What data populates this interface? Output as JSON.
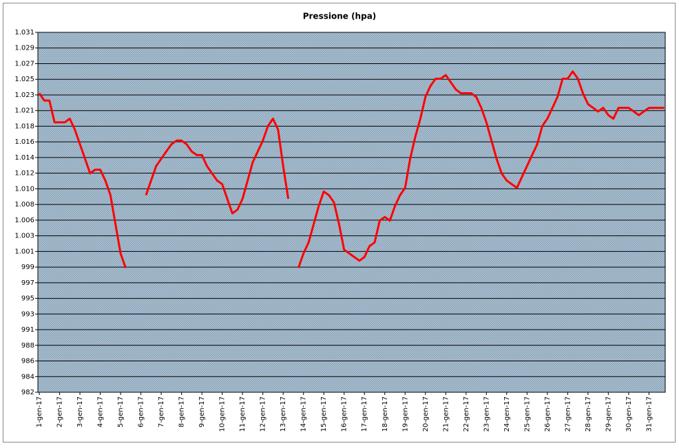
{
  "chart_data": {
    "type": "line",
    "title": "Pressione (hpa)",
    "x": [
      1,
      1.25,
      1.5,
      1.75,
      2,
      2.25,
      2.5,
      2.75,
      3,
      3.25,
      3.5,
      3.75,
      4,
      4.25,
      4.5,
      4.75,
      5,
      5.25,
      5.5,
      5.75,
      6,
      6.25,
      6.5,
      6.75,
      7,
      7.25,
      7.5,
      7.75,
      8,
      8.25,
      8.5,
      8.75,
      9,
      9.25,
      9.5,
      9.75,
      10,
      10.25,
      10.5,
      10.75,
      11,
      11.25,
      11.5,
      11.75,
      12,
      12.25,
      12.5,
      12.75,
      13,
      13.25,
      13.5,
      13.75,
      14,
      14.25,
      14.5,
      14.75,
      15,
      15.25,
      15.5,
      15.75,
      16,
      16.25,
      16.5,
      16.75,
      17,
      17.25,
      17.5,
      17.75,
      18,
      18.25,
      18.5,
      18.75,
      19,
      19.25,
      19.5,
      19.75,
      20,
      20.25,
      20.5,
      20.75,
      21,
      21.25,
      21.5,
      21.75,
      22,
      22.25,
      22.5,
      22.75,
      23,
      23.25,
      23.5,
      23.75,
      24,
      24.25,
      24.5,
      24.75,
      25,
      25.25,
      25.5,
      25.75,
      26,
      26.25,
      26.5,
      26.75,
      27,
      27.25,
      27.5,
      27.75,
      28,
      28.25,
      28.5,
      28.75,
      29,
      29.25,
      29.5,
      29.75,
      30,
      30.25,
      30.5,
      30.75,
      31,
      31.25,
      31.5,
      31.75
    ],
    "values": [
      1023,
      1022,
      1022,
      1019,
      1019,
      1019,
      1019.5,
      1018,
      1016,
      1014,
      1012,
      1012.5,
      1012.5,
      1011,
      1009,
      1005,
      1001,
      999,
      null,
      null,
      null,
      1009,
      1011,
      1013,
      1014,
      1015,
      1016,
      1016.5,
      1016.5,
      1016,
      1015,
      1014.5,
      1014.5,
      1013,
      1012,
      1011,
      1010.5,
      1008.5,
      1006.5,
      1007,
      1008.5,
      1011,
      1013.5,
      1015,
      1016.5,
      1018.5,
      1019.5,
      1018,
      1013,
      1008.5,
      null,
      999,
      1001,
      1002.5,
      1005,
      1007.5,
      1009.5,
      1009,
      1008,
      1005,
      1001.5,
      1001,
      1000.5,
      1000,
      1000.5,
      1002,
      1002.5,
      1005.5,
      1006,
      1005.5,
      1007.5,
      1009,
      1010,
      1014,
      1017,
      1019.5,
      1022.5,
      1024,
      1025,
      1025,
      1025.5,
      1024.5,
      1023.5,
      1023,
      1023,
      1023,
      1022.5,
      1021,
      1019,
      1016.5,
      1014,
      1012,
      1011,
      1010.5,
      1010,
      1011.5,
      1013,
      1014.5,
      1016,
      1018.5,
      1019.5,
      1021,
      1022.5,
      1025,
      1025,
      1026,
      1025,
      1023,
      1021.5,
      1021,
      1020.5,
      1021,
      1020,
      1019.5,
      1021,
      1021,
      1021,
      1020.5,
      1020,
      1020.5,
      1021,
      1021,
      1021,
      1021
    ],
    "color": "#ff0000",
    "xlim": [
      0.93,
      31.8
    ],
    "xticks": [
      {
        "value": 1,
        "label": "1-gen-17"
      },
      {
        "value": 2,
        "label": "2-gen-17"
      },
      {
        "value": 3,
        "label": "3-gen-17"
      },
      {
        "value": 4,
        "label": "4-gen-17"
      },
      {
        "value": 5,
        "label": "5-gen-17"
      },
      {
        "value": 6,
        "label": "6-gen-17"
      },
      {
        "value": 7,
        "label": "7-gen-17"
      },
      {
        "value": 8,
        "label": "8-gen-17"
      },
      {
        "value": 9,
        "label": "9-gen-17"
      },
      {
        "value": 10,
        "label": "10-gen-17"
      },
      {
        "value": 11,
        "label": "11-gen-17"
      },
      {
        "value": 12,
        "label": "12-gen-17"
      },
      {
        "value": 13,
        "label": "13-gen-17"
      },
      {
        "value": 14,
        "label": "14-gen-17"
      },
      {
        "value": 15,
        "label": "15-gen-17"
      },
      {
        "value": 16,
        "label": "16-gen-17"
      },
      {
        "value": 17,
        "label": "17-gen-17"
      },
      {
        "value": 18,
        "label": "18-gen-17"
      },
      {
        "value": 19,
        "label": "19-gen-17"
      },
      {
        "value": 20,
        "label": "20-gen-17"
      },
      {
        "value": 21,
        "label": "21-gen-17"
      },
      {
        "value": 22,
        "label": "22-gen-17"
      },
      {
        "value": 23,
        "label": "23-gen-17"
      },
      {
        "value": 24,
        "label": "24-gen-17"
      },
      {
        "value": 25,
        "label": "25-gen-17"
      },
      {
        "value": 26,
        "label": "26-gen-17"
      },
      {
        "value": 27,
        "label": "27-gen-17"
      },
      {
        "value": 28,
        "label": "28-gen-17"
      },
      {
        "value": 29,
        "label": "29-gen-17"
      },
      {
        "value": 30,
        "label": "30-gen-17"
      },
      {
        "value": 31,
        "label": "31-gen-17"
      }
    ],
    "ylim": [
      981.92,
      1031.37
    ],
    "yticks": [
      {
        "value": 981.92,
        "label": "982"
      },
      {
        "value": 984.07,
        "label": "984"
      },
      {
        "value": 986.22,
        "label": "986"
      },
      {
        "value": 988.37,
        "label": "988"
      },
      {
        "value": 990.52,
        "label": "991"
      },
      {
        "value": 992.67,
        "label": "993"
      },
      {
        "value": 994.82,
        "label": "995"
      },
      {
        "value": 996.97,
        "label": "997"
      },
      {
        "value": 999.12,
        "label": "999"
      },
      {
        "value": 1001.27,
        "label": "1.001"
      },
      {
        "value": 1003.42,
        "label": "1.003"
      },
      {
        "value": 1005.57,
        "label": "1.006"
      },
      {
        "value": 1007.72,
        "label": "1.008"
      },
      {
        "value": 1009.87,
        "label": "1.010"
      },
      {
        "value": 1012.02,
        "label": "1.012"
      },
      {
        "value": 1014.17,
        "label": "1.014"
      },
      {
        "value": 1016.32,
        "label": "1.016"
      },
      {
        "value": 1018.47,
        "label": "1.018"
      },
      {
        "value": 1020.62,
        "label": "1.021"
      },
      {
        "value": 1022.77,
        "label": "1.023"
      },
      {
        "value": 1024.92,
        "label": "1.025"
      },
      {
        "value": 1027.07,
        "label": "1.027"
      },
      {
        "value": 1029.22,
        "label": "1.029"
      },
      {
        "value": 1031.37,
        "label": "1.031"
      }
    ],
    "grid": true
  }
}
